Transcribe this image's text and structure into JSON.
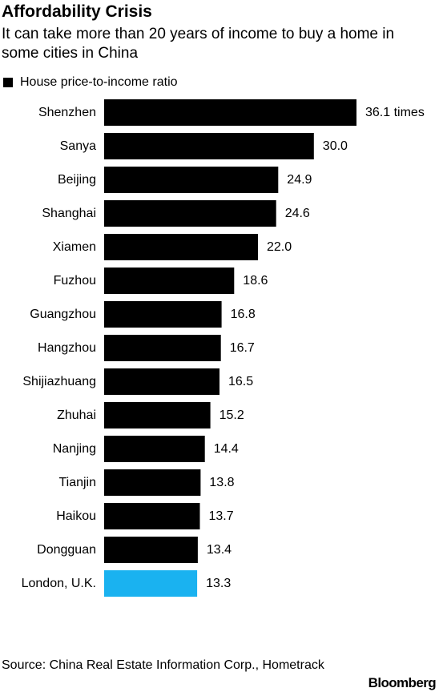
{
  "header": {
    "title": "Affordability Crisis",
    "subtitle": "It can take more than 20 years of income to buy a home in some cities in China"
  },
  "legend": {
    "label": "House price-to-income ratio",
    "swatch_color": "#000000"
  },
  "colors": {
    "china_bar": "#000000",
    "highlight_bar": "#1ab2f0",
    "text": "#000000",
    "background": "#ffffff"
  },
  "chart_data": {
    "type": "bar",
    "orientation": "horizontal",
    "title": "Affordability Crisis",
    "subtitle": "It can take more than 20 years of income to buy a home in some cities in China",
    "categories": [
      "Shenzhen",
      "Sanya",
      "Beijing",
      "Shanghai",
      "Xiamen",
      "Fuzhou",
      "Guangzhou",
      "Hangzhou",
      "Shijiazhuang",
      "Zhuhai",
      "Nanjing",
      "Tianjin",
      "Haikou",
      "Dongguan",
      "London, U.K."
    ],
    "series": [
      {
        "name": "House price-to-income ratio",
        "values": [
          36.1,
          30.0,
          24.9,
          24.6,
          22.0,
          18.6,
          16.8,
          16.7,
          16.5,
          15.2,
          14.4,
          13.8,
          13.7,
          13.4,
          13.3
        ]
      }
    ],
    "data_labels": [
      "36.1 times",
      "30.0",
      "24.9",
      "24.6",
      "22.0",
      "18.6",
      "16.8",
      "16.7",
      "16.5",
      "15.2",
      "14.4",
      "13.8",
      "13.7",
      "13.4",
      "13.3"
    ],
    "highlight_category": "London, U.K.",
    "xlim": [
      0,
      36.1
    ],
    "axes_visible": false,
    "grid": false,
    "legend_position": "top-left"
  },
  "footer": {
    "source": "Source: China Real Estate Information Corp., Hometrack",
    "brand": "Bloomberg"
  }
}
